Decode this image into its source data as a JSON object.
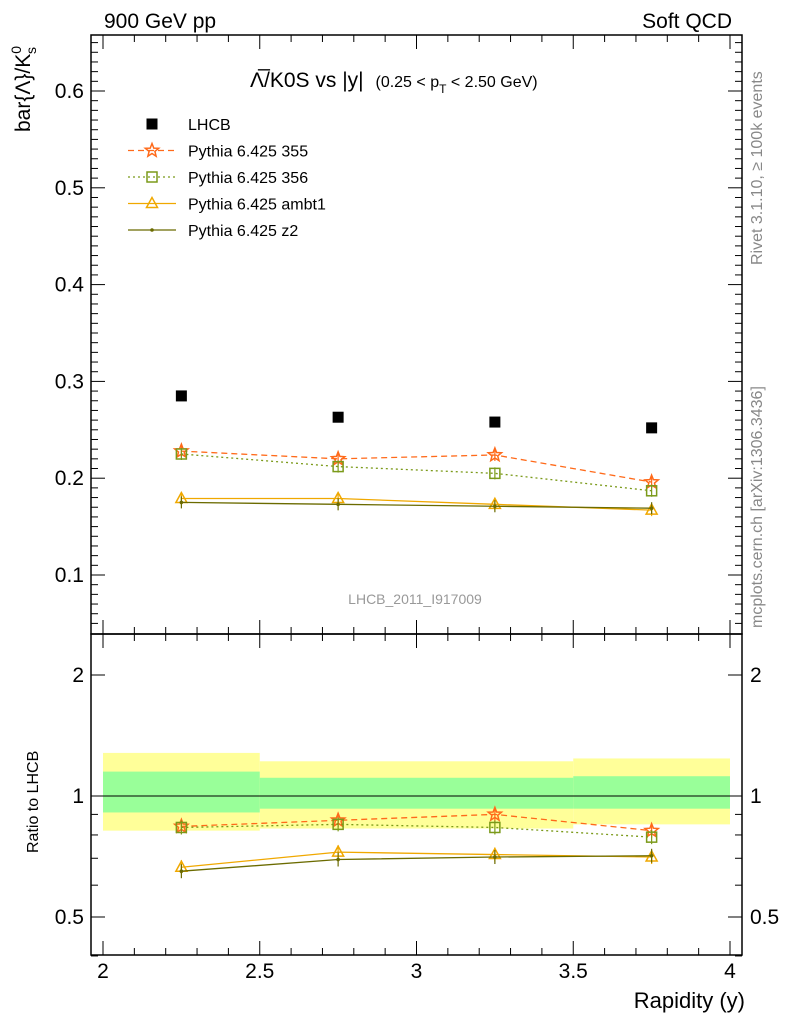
{
  "header": {
    "left": "900 GeV pp",
    "right": "Soft QCD"
  },
  "side_notes": {
    "rivet": "Rivet 3.1.10, ≥ 100k events",
    "mcplots": "mcplots.cern.ch [arXiv:1306.3436]"
  },
  "watermark": "LHCB_2011_I917009",
  "chart_data": [
    {
      "type": "scatter",
      "title": "Λ̅/K0S vs |y|",
      "title_parts": {
        "main": "Λ̅/K0S vs |y|",
        "cut_open": "(0.25 < p",
        "cut_sub": "T",
        "cut_close": " < 2.50 GeV)"
      },
      "ylabel": "bar{Λ}/K",
      "ylabel_sup": "0",
      "ylabel_sub": "s",
      "xlim": [
        2,
        4
      ],
      "ylim": [
        0.04,
        0.66
      ],
      "yticks": [
        "0.1",
        "0.2",
        "0.3",
        "0.4",
        "0.5",
        "0.6"
      ],
      "x": [
        2.25,
        2.75,
        3.25,
        3.75
      ],
      "legend_position": "top-left",
      "series": [
        {
          "name": "LHCB",
          "style": "data",
          "color": "#000000",
          "values": [
            0.285,
            0.263,
            0.258,
            0.252
          ]
        },
        {
          "name": "Pythia 6.425 355",
          "style": "star",
          "color": "#ff6a1a",
          "values": [
            0.228,
            0.22,
            0.224,
            0.196
          ]
        },
        {
          "name": "Pythia 6.425 356",
          "style": "square",
          "color": "#7b9a1a",
          "values": [
            0.225,
            0.212,
            0.205,
            0.187
          ]
        },
        {
          "name": "Pythia 6.425 ambt1",
          "style": "triangle",
          "color": "#f0a800",
          "values": [
            0.179,
            0.179,
            0.173,
            0.167
          ]
        },
        {
          "name": "Pythia 6.425 z2",
          "style": "dot",
          "color": "#6b6b00",
          "values": [
            0.175,
            0.173,
            0.171,
            0.169
          ]
        }
      ]
    },
    {
      "type": "scatter",
      "ylabel": "Ratio to LHCB",
      "xlabel": "Rapidity (y)",
      "xlim": [
        2,
        4
      ],
      "ylim": [
        0.35,
        2.35
      ],
      "log_y": true,
      "xticks": [
        "2",
        "2.5",
        "3",
        "3.5",
        "4"
      ],
      "yticks": [
        "0.5",
        "1",
        "2"
      ],
      "x": [
        2.25,
        2.75,
        3.25,
        3.75
      ],
      "band_edges": [
        2.0,
        2.5,
        3.5,
        4.0
      ],
      "band_outer": [
        [
          0.82,
          1.28
        ],
        [
          0.83,
          1.22
        ],
        [
          0.85,
          1.24
        ]
      ],
      "band_inner": [
        [
          0.91,
          1.15
        ],
        [
          0.93,
          1.11
        ],
        [
          0.93,
          1.12
        ]
      ],
      "band_colors": {
        "outer": "#ffff99",
        "inner": "#99ff99"
      },
      "series": [
        {
          "name": "Pythia 6.425 355",
          "style": "star",
          "color": "#ff6a1a",
          "values": [
            0.84,
            0.87,
            0.9,
            0.82
          ]
        },
        {
          "name": "Pythia 6.425 356",
          "style": "square",
          "color": "#7b9a1a",
          "values": [
            0.835,
            0.85,
            0.835,
            0.79
          ]
        },
        {
          "name": "Pythia 6.425 ambt1",
          "style": "triangle",
          "color": "#f0a800",
          "values": [
            0.665,
            0.725,
            0.715,
            0.705
          ]
        },
        {
          "name": "Pythia 6.425 z2",
          "style": "dot",
          "color": "#6b6b00",
          "values": [
            0.65,
            0.695,
            0.705,
            0.71
          ]
        }
      ]
    }
  ]
}
